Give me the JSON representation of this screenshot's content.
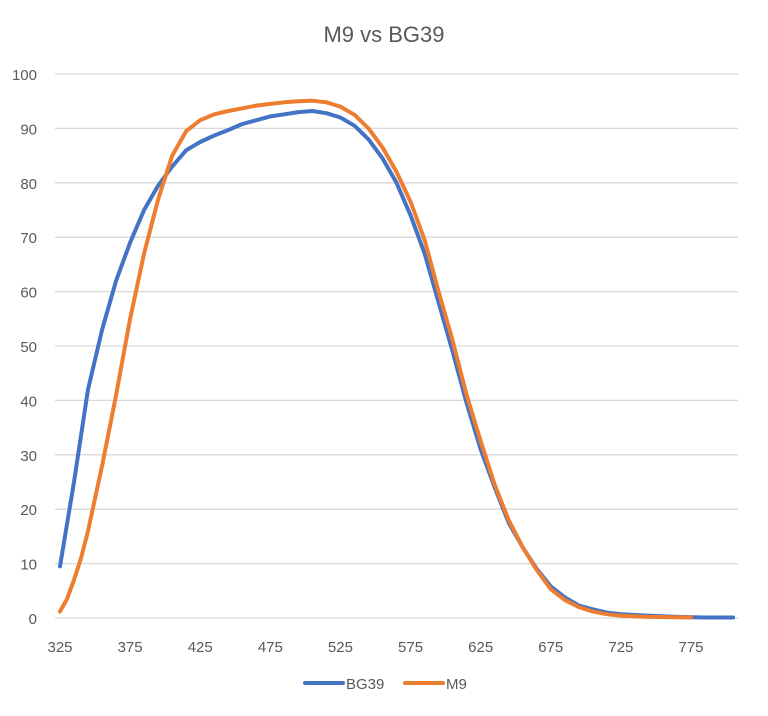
{
  "chart_data": {
    "type": "line",
    "title": "M9 vs BG39",
    "xlabel": "",
    "ylabel": "",
    "xlim": [
      325,
      806
    ],
    "ylim": [
      0,
      100
    ],
    "x_ticks": [
      325,
      375,
      425,
      475,
      525,
      575,
      625,
      675,
      725,
      775
    ],
    "y_ticks": [
      0,
      10,
      20,
      30,
      40,
      50,
      60,
      70,
      80,
      90,
      100
    ],
    "grid": true,
    "legend_position": "bottom",
    "series": [
      {
        "name": "BG39",
        "color": "#4472C4",
        "x": [
          325,
          335,
          345,
          355,
          365,
          375,
          385,
          395,
          405,
          415,
          425,
          435,
          445,
          455,
          465,
          475,
          485,
          495,
          505,
          515,
          525,
          535,
          545,
          555,
          565,
          575,
          585,
          595,
          605,
          615,
          625,
          635,
          645,
          655,
          665,
          675,
          685,
          695,
          705,
          715,
          725,
          745,
          765,
          785,
          805
        ],
        "y": [
          9.5,
          25,
          42,
          53,
          62,
          69,
          75,
          79.5,
          83,
          86,
          87.5,
          88.7,
          89.7,
          90.8,
          91.5,
          92.2,
          92.6,
          93,
          93.2,
          92.8,
          92,
          90.5,
          88,
          84.5,
          80,
          74,
          67,
          58,
          49,
          39.5,
          31,
          24,
          17.5,
          13,
          9,
          5.8,
          3.8,
          2.3,
          1.6,
          1.0,
          0.7,
          0.4,
          0.2,
          0.1,
          0.1
        ]
      },
      {
        "name": "M9",
        "color": "#ED7D31",
        "x": [
          325,
          330,
          335,
          340,
          345,
          355,
          365,
          375,
          385,
          395,
          405,
          415,
          425,
          435,
          445,
          455,
          465,
          475,
          485,
          495,
          505,
          515,
          525,
          535,
          545,
          555,
          565,
          575,
          585,
          595,
          605,
          615,
          625,
          635,
          645,
          655,
          665,
          675,
          685,
          695,
          705,
          715,
          725,
          745,
          775
        ],
        "y": [
          1.2,
          3.5,
          7,
          11,
          16,
          28,
          41,
          55,
          67,
          77,
          85,
          89.5,
          91.5,
          92.6,
          93.2,
          93.7,
          94.2,
          94.5,
          94.8,
          95,
          95.1,
          94.8,
          94,
          92.5,
          90,
          86.5,
          82,
          76.5,
          69.5,
          60,
          51,
          41,
          32.5,
          24.5,
          18,
          13,
          8.8,
          5.3,
          3.3,
          2,
          1.2,
          0.7,
          0.4,
          0.2,
          0.1
        ]
      }
    ]
  }
}
